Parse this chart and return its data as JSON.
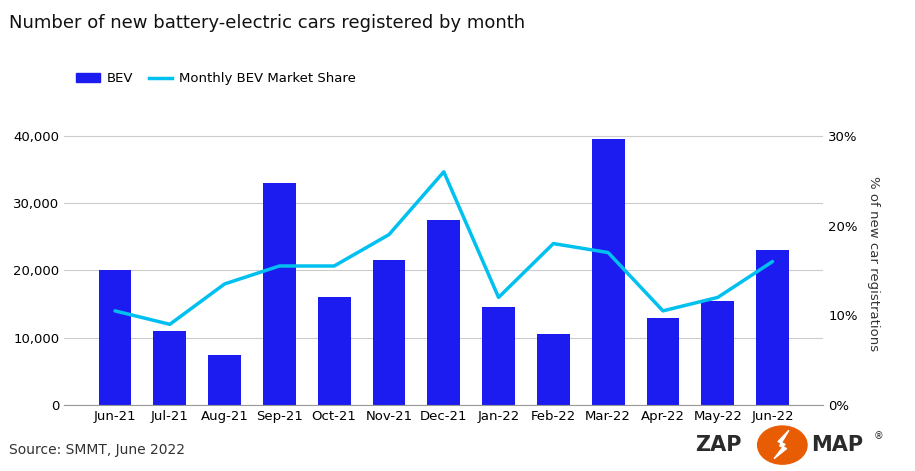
{
  "title": "Number of new battery-electric cars registered by month",
  "categories": [
    "Jun-21",
    "Jul-21",
    "Aug-21",
    "Sep-21",
    "Oct-21",
    "Nov-21",
    "Dec-21",
    "Jan-22",
    "Feb-22",
    "Mar-22",
    "Apr-22",
    "May-22",
    "Jun-22"
  ],
  "bev_values": [
    20000,
    11000,
    7500,
    33000,
    16000,
    21500,
    27500,
    14500,
    10500,
    39500,
    13000,
    15500,
    23000
  ],
  "market_share": [
    10.5,
    9.0,
    13.5,
    15.5,
    15.5,
    19.0,
    26.0,
    12.0,
    18.0,
    17.0,
    10.5,
    12.0,
    16.0
  ],
  "bar_color": "#1c1cf0",
  "line_color": "#00c0f0",
  "ylabel_right": "% of new car registrations",
  "source_text": "Source: SMMT, June 2022",
  "ylim_left": [
    0,
    42000
  ],
  "ylim_right": [
    0,
    31.5
  ],
  "yticks_left": [
    0,
    10000,
    20000,
    30000,
    40000
  ],
  "yticks_right": [
    0,
    10,
    20,
    30
  ],
  "background_color": "#ffffff",
  "grid_color": "#cccccc",
  "legend_bev_label": "BEV",
  "legend_line_label": "Monthly BEV Market Share",
  "title_fontsize": 13,
  "axis_fontsize": 9.5,
  "source_fontsize": 10,
  "logo_zap_color": "#2b2b2b",
  "logo_map_color": "#2b2b2b",
  "logo_bolt_color": "#ffffff",
  "logo_circle_color": "#e85d04"
}
